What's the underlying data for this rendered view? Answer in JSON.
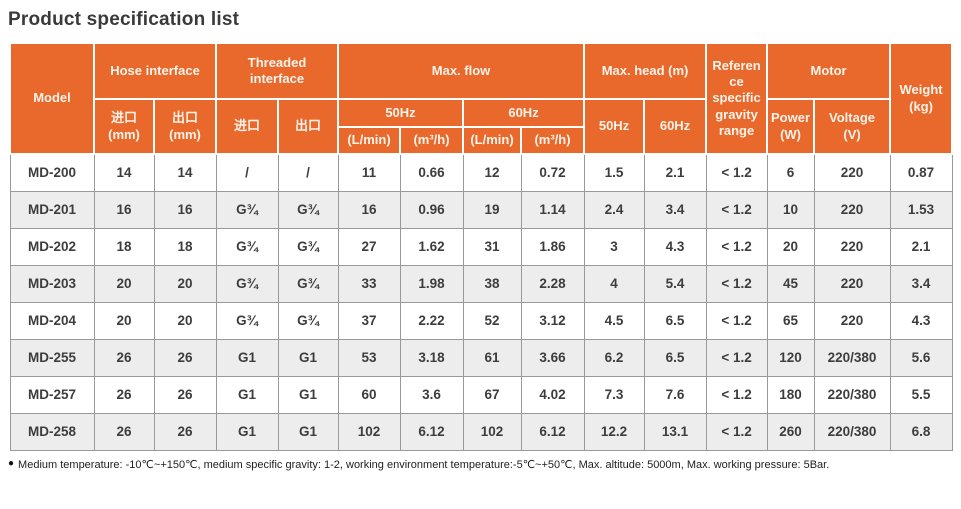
{
  "page": {
    "title": "Product specification list"
  },
  "table": {
    "header": {
      "model": "Model",
      "hose_interface": "Hose interface",
      "threaded_interface": "Threaded\ninterface",
      "max_flow": "Max. flow",
      "max_head": "Max. head (m)",
      "reference_gravity": "Reference specific gravity range",
      "motor": "Motor",
      "weight": "Weight\n(kg)",
      "inlet_mm": "进口\n(mm)",
      "outlet_mm": "出口\n(mm)",
      "inlet": "进口",
      "outlet": "出口",
      "hz50": "50Hz",
      "hz60": "60Hz",
      "l_min": "(L/min)",
      "m3_h": "(m³/h)",
      "power_w": "Power\n(W)",
      "voltage_v": "Voltage\n(V)"
    },
    "rows": [
      [
        "MD-200",
        "14",
        "14",
        "/",
        "/",
        "11",
        "0.66",
        "12",
        "0.72",
        "1.5",
        "2.1",
        "< 1.2",
        "6",
        "220",
        "0.87"
      ],
      [
        "MD-201",
        "16",
        "16",
        "G¾",
        "G¾",
        "16",
        "0.96",
        "19",
        "1.14",
        "2.4",
        "3.4",
        "< 1.2",
        "10",
        "220",
        "1.53"
      ],
      [
        "MD-202",
        "18",
        "18",
        "G¾",
        "G¾",
        "27",
        "1.62",
        "31",
        "1.86",
        "3",
        "4.3",
        "< 1.2",
        "20",
        "220",
        "2.1"
      ],
      [
        "MD-203",
        "20",
        "20",
        "G¾",
        "G¾",
        "33",
        "1.98",
        "38",
        "2.28",
        "4",
        "5.4",
        "< 1.2",
        "45",
        "220",
        "3.4"
      ],
      [
        "MD-204",
        "20",
        "20",
        "G¾",
        "G¾",
        "37",
        "2.22",
        "52",
        "3.12",
        "4.5",
        "6.5",
        "< 1.2",
        "65",
        "220",
        "4.3"
      ],
      [
        "MD-255",
        "26",
        "26",
        "G1",
        "G1",
        "53",
        "3.18",
        "61",
        "3.66",
        "6.2",
        "6.5",
        "< 1.2",
        "120",
        "220/380",
        "5.6"
      ],
      [
        "MD-257",
        "26",
        "26",
        "G1",
        "G1",
        "60",
        "3.6",
        "67",
        "4.02",
        "7.3",
        "7.6",
        "< 1.2",
        "180",
        "220/380",
        "5.5"
      ],
      [
        "MD-258",
        "26",
        "26",
        "G1",
        "G1",
        "102",
        "6.12",
        "102",
        "6.12",
        "12.2",
        "13.1",
        "< 1.2",
        "260",
        "220/380",
        "6.8"
      ]
    ]
  },
  "footnote": {
    "bullet": "●",
    "text": "Medium temperature: -10℃~+150℃, medium specific gravity: 1-2, working environment temperature:-5℃~+50℃, Max. altitude: 5000m, Max. working pressure: 5Bar."
  },
  "colors": {
    "header_bg": "#E8692B",
    "header_text": "#FCF3EA",
    "header_border": "#FFFFFF",
    "row_bg": "#FFFFFF",
    "row_alt_bg": "#EDEDED",
    "body_text": "#3D3D3D",
    "border": "#999999",
    "title_text": "#3A3A3A"
  }
}
